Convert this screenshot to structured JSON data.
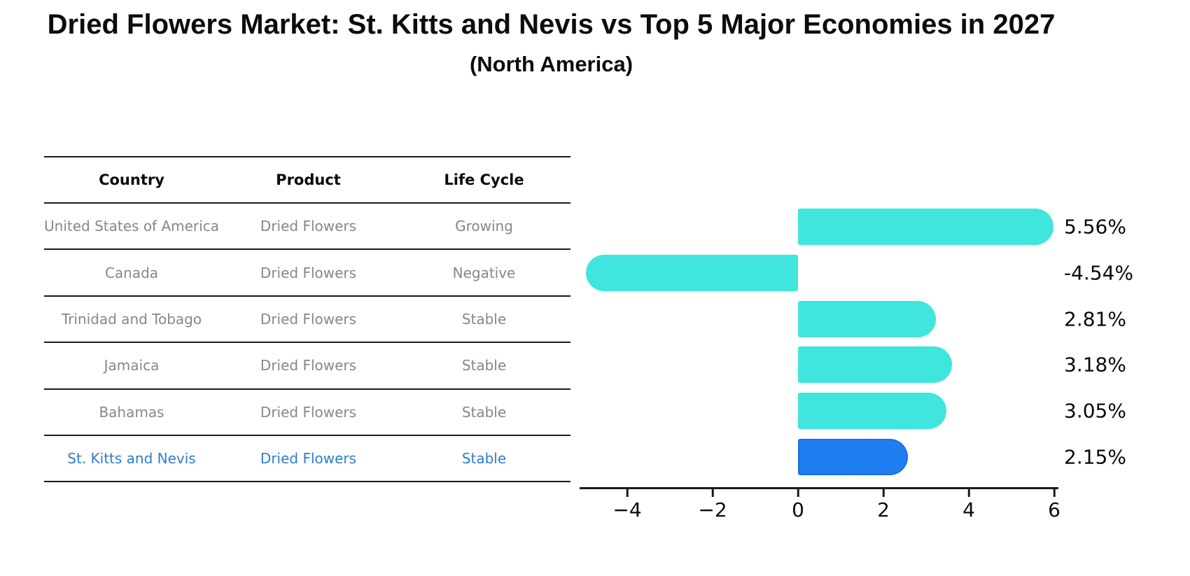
{
  "title": "Dried Flowers Market: St. Kitts and Nevis vs Top 5 Major Economies in 2027",
  "subtitle": "(North America)",
  "table": {
    "headers": [
      "Country",
      "Product",
      "Life Cycle"
    ],
    "rows": [
      {
        "country": "United States of America",
        "product": "Dried Flowers",
        "life_cycle": "Growing",
        "highlight": false
      },
      {
        "country": "Canada",
        "product": "Dried Flowers",
        "life_cycle": "Negative",
        "highlight": false
      },
      {
        "country": "Trinidad and Tobago",
        "product": "Dried Flowers",
        "life_cycle": "Stable",
        "highlight": false
      },
      {
        "country": "Jamaica",
        "product": "Dried Flowers",
        "life_cycle": "Stable",
        "highlight": false
      },
      {
        "country": "Bahamas",
        "product": "Dried Flowers",
        "life_cycle": "Stable",
        "highlight": false
      },
      {
        "country": "St. Kitts and Nevis",
        "product": "Dried Flowers",
        "life_cycle": "Stable",
        "highlight": true
      }
    ]
  },
  "chart_data": {
    "type": "bar",
    "orientation": "horizontal",
    "title": "Dried Flowers Market: St. Kitts and Nevis vs Top 5 Major Economies in 2027",
    "subtitle": "(North America)",
    "categories": [
      "United States of America",
      "Canada",
      "Trinidad and Tobago",
      "Jamaica",
      "Bahamas",
      "St. Kitts and Nevis"
    ],
    "values": [
      5.56,
      -4.54,
      2.81,
      3.18,
      3.05,
      2.15
    ],
    "value_labels": [
      "5.56%",
      "-4.54%",
      "2.81%",
      "3.18%",
      "3.05%",
      "2.15%"
    ],
    "highlight_index": 5,
    "xticks": [
      -4,
      -2,
      0,
      2,
      4,
      6
    ],
    "xtick_labels": [
      "−4",
      "−2",
      "0",
      "2",
      "4",
      "6"
    ],
    "xlim": [
      -5.1,
      6.1
    ],
    "grid": false,
    "legend": false,
    "bar_color": "#40E5DD",
    "highlight_bar_color": "#1E7DF0",
    "highlight_bar_edge_color": "#0F62D9",
    "highlight_text_color": "#2E7EC8",
    "text_color": "#878787",
    "axis_color": "#1a1a1a"
  }
}
